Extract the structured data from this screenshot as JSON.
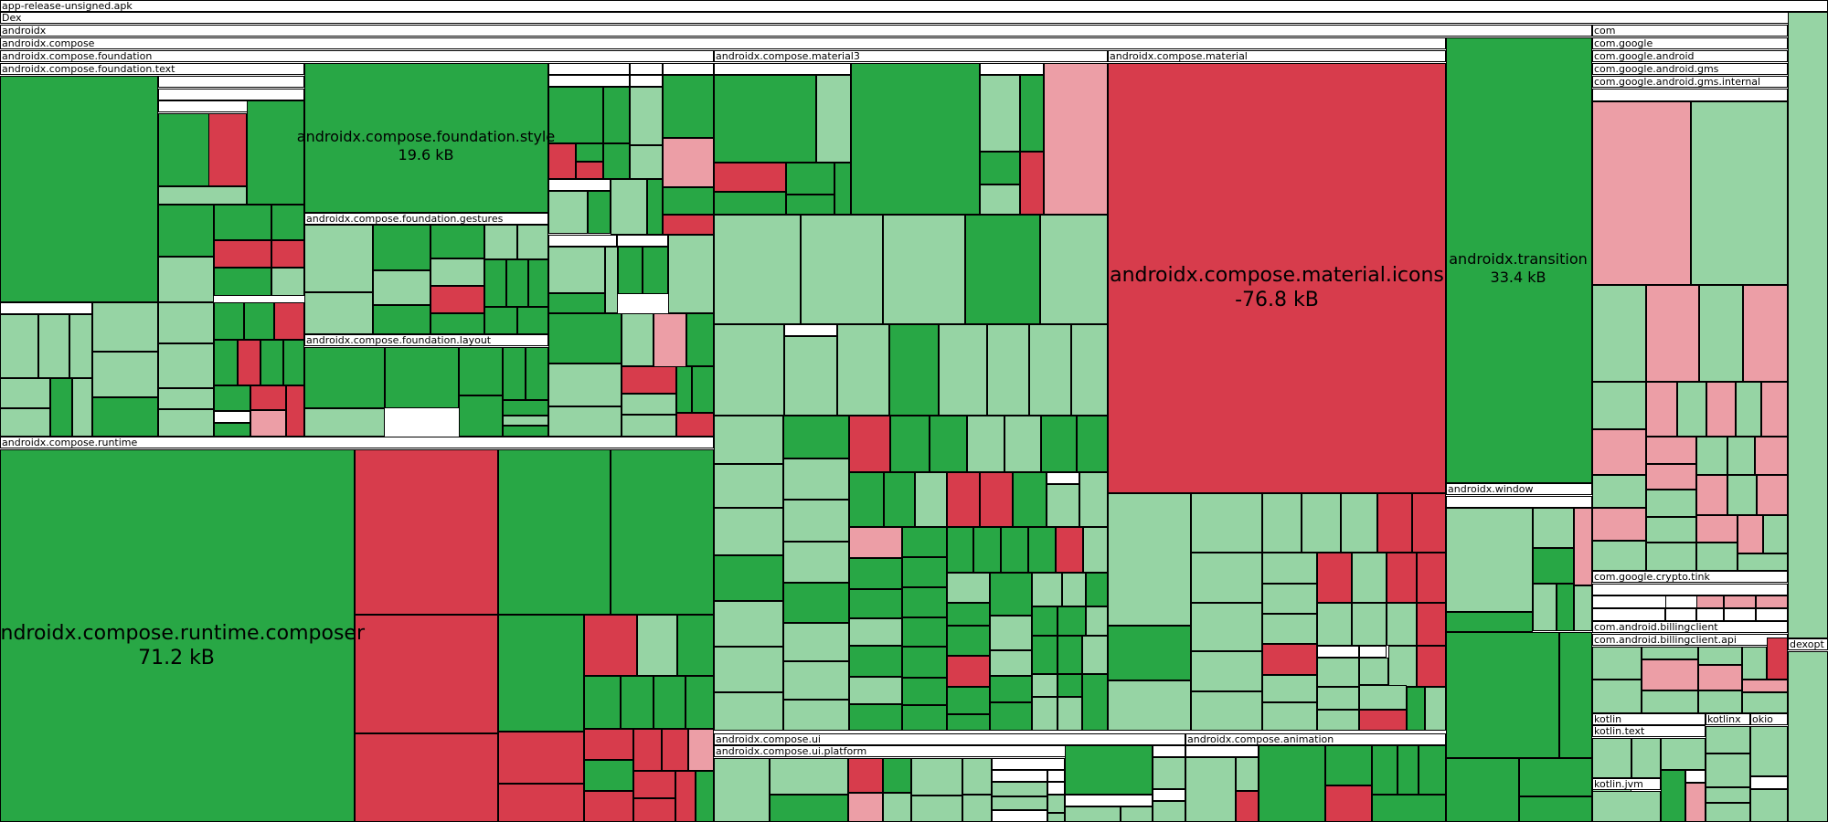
{
  "colors": {
    "strong_grow": "#28a745",
    "weak_grow": "#96d4a4",
    "strong_shrink": "#d73c4c",
    "weak_shrink": "#ec9ea6",
    "unchanged": "#ffffff",
    "border": "#000000"
  },
  "chart_data": {
    "type": "treemap",
    "title": "",
    "headers": [
      "app-release-unsigned.apk",
      "Dex",
      "androidx",
      "androidx.compose",
      "androidx.compose.foundation",
      "androidx.compose.foundation.text",
      "androidx.compose.foundation.gestures",
      "androidx.compose.foundation.layout",
      "androidx.compose.runtime",
      "androidx.compose.material3",
      "androidx.compose.material",
      "androidx.compose.ui",
      "androidx.compose.ui.platform",
      "androidx.compose.animation",
      "androidx.window",
      "com",
      "com.google",
      "com.google.android",
      "com.google.android.gms",
      "com.google.android.gms.internal",
      "com.google.crypto.tink",
      "com.android.billingclient",
      "com.android.billingclient.api",
      "dexopt",
      "kotlin",
      "kotlin.text",
      "kotlin.jvm",
      "kotlinx",
      "okio"
    ],
    "labeled_nodes": [
      {
        "name": "androidx.compose.foundation.style",
        "size": "19.6 kB"
      },
      {
        "name": "androidx.compose.material.icons",
        "size": "-76.8 kB"
      },
      {
        "name": "androidx.transition",
        "size": "33.4 kB"
      },
      {
        "name": "androidx.compose.runtime.composer",
        "size": "71.2 kB"
      }
    ]
  }
}
